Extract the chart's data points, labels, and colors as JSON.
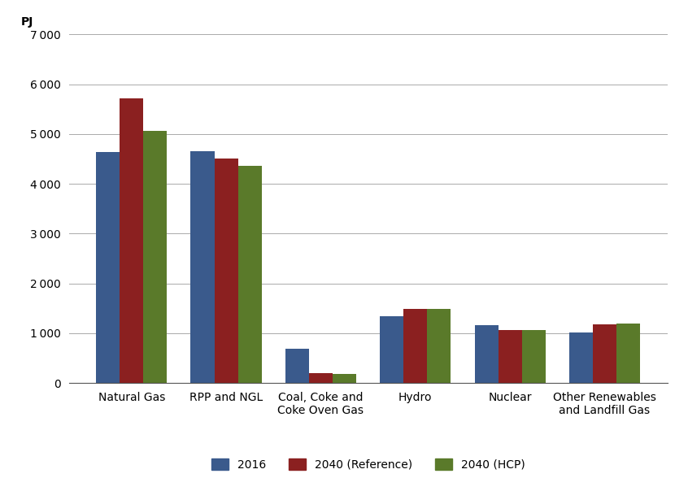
{
  "categories": [
    "Natural Gas",
    "RPP and NGL",
    "Coal, Coke and\nCoke Oven Gas",
    "Hydro",
    "Nuclear",
    "Other Renewables\nand Landfill Gas"
  ],
  "series": {
    "2016": [
      4630,
      4660,
      680,
      1340,
      1160,
      1010
    ],
    "2040 (Reference)": [
      5720,
      4500,
      190,
      1490,
      1060,
      1170
    ],
    "2040 (HCP)": [
      5060,
      4360,
      175,
      1490,
      1060,
      1190
    ]
  },
  "series_colors": {
    "2016": "#3A5A8C",
    "2040 (Reference)": "#8B2020",
    "2040 (HCP)": "#5A7A2A"
  },
  "ylabel": "PJ",
  "ylim": [
    0,
    7000
  ],
  "yticks": [
    0,
    1000,
    2000,
    3000,
    4000,
    5000,
    6000,
    7000
  ],
  "bar_width": 0.25,
  "background_color": "#ffffff",
  "grid_color": "#aaaaaa",
  "legend_labels": [
    "2016",
    "2040 (Reference)",
    "2040 (HCP)"
  ],
  "tick_fontsize": 10,
  "legend_fontsize": 10,
  "ylabel_fontsize": 10
}
